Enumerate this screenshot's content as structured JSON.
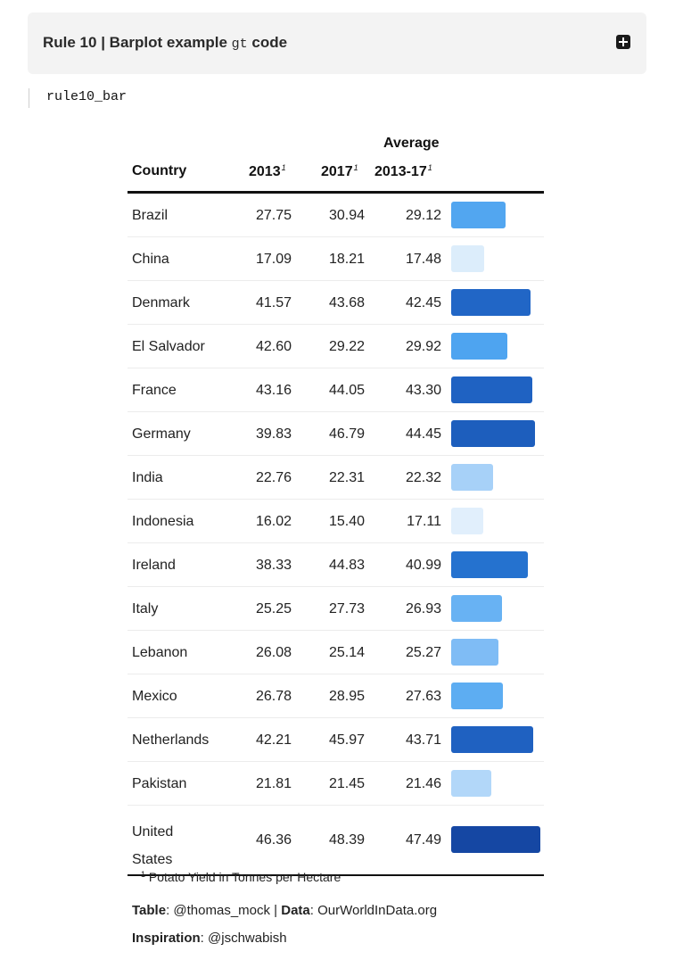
{
  "panel": {
    "title_before": "Rule 10 | Barplot example ",
    "title_code": "gt",
    "title_after": " code"
  },
  "code_text": "rule10_bar",
  "table": {
    "headers": {
      "country": "Country",
      "y2013": "2013",
      "y2017": "2017",
      "avg_line1": "Average",
      "avg_line2": "2013-17",
      "footnote_mark": "1"
    },
    "rows": [
      {
        "country": "Brazil",
        "y2013": "27.75",
        "y2017": "30.94",
        "avg": "29.12",
        "color": "#52a6f0"
      },
      {
        "country": "China",
        "y2013": "17.09",
        "y2017": "18.21",
        "avg": "17.48",
        "color": "#dcedfb"
      },
      {
        "country": "Denmark",
        "y2013": "41.57",
        "y2017": "43.68",
        "avg": "42.45",
        "color": "#2166c6"
      },
      {
        "country": "El Salvador",
        "y2013": "42.60",
        "y2017": "29.22",
        "avg": "29.92",
        "color": "#4ea4f0"
      },
      {
        "country": "France",
        "y2013": "43.16",
        "y2017": "44.05",
        "avg": "43.30",
        "color": "#1f62c2"
      },
      {
        "country": "Germany",
        "y2013": "39.83",
        "y2017": "46.79",
        "avg": "44.45",
        "color": "#1d5ebd"
      },
      {
        "country": "India",
        "y2013": "22.76",
        "y2017": "22.31",
        "avg": "22.32",
        "color": "#a7d1f8"
      },
      {
        "country": "Indonesia",
        "y2013": "16.02",
        "y2017": "15.40",
        "avg": "17.11",
        "color": "#e1effc"
      },
      {
        "country": "Ireland",
        "y2013": "38.33",
        "y2017": "44.83",
        "avg": "40.99",
        "color": "#2572cf"
      },
      {
        "country": "Italy",
        "y2013": "25.25",
        "y2017": "27.73",
        "avg": "26.93",
        "color": "#68b2f3"
      },
      {
        "country": "Lebanon",
        "y2013": "26.08",
        "y2017": "25.14",
        "avg": "25.27",
        "color": "#7fbcf5"
      },
      {
        "country": "Mexico",
        "y2013": "26.78",
        "y2017": "28.95",
        "avg": "27.63",
        "color": "#5dadf2"
      },
      {
        "country": "Netherlands",
        "y2013": "42.21",
        "y2017": "45.97",
        "avg": "43.71",
        "color": "#1f61c1"
      },
      {
        "country": "Pakistan",
        "y2013": "21.81",
        "y2017": "21.45",
        "avg": "21.46",
        "color": "#b2d7f9"
      },
      {
        "country": "United States",
        "y2013": "46.36",
        "y2017": "48.39",
        "avg": "47.49",
        "color": "#1547a3"
      }
    ],
    "bar_scale_max": 47.49,
    "footnote_mark": "1",
    "footnote": "Potato Yield in Tonnes per Hectare"
  },
  "source": {
    "table_label": "Table",
    "table_value": ": @thomas_mock | ",
    "data_label": "Data",
    "data_value": ": OurWorldInData.org",
    "inspiration_label": "Inspiration",
    "inspiration_value": ": @jschwabish"
  }
}
